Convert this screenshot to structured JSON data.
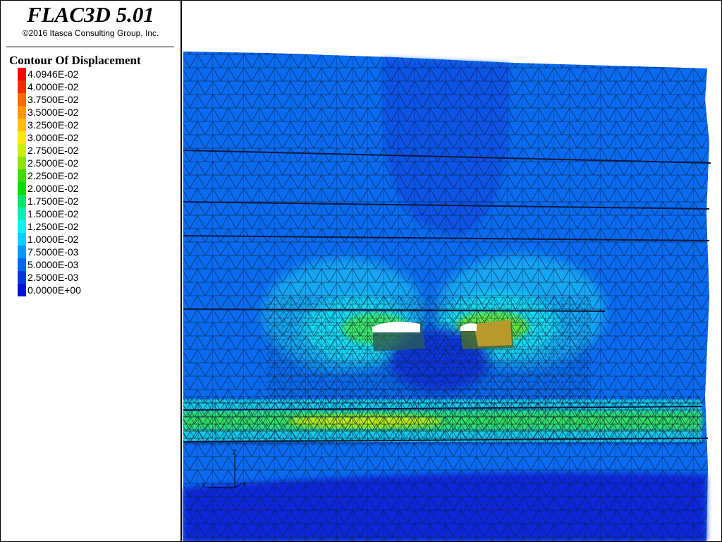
{
  "app": {
    "title": "FLAC3D 5.01",
    "copyright": "©2016 Itasca Consulting Group, Inc."
  },
  "legend": {
    "title": "Contour Of Displacement",
    "items": [
      {
        "label": "4.0946E-02",
        "color": "#ff0000"
      },
      {
        "label": "4.0000E-02",
        "color": "#ff2a00"
      },
      {
        "label": "3.7500E-02",
        "color": "#ff6a00"
      },
      {
        "label": "3.5000E-02",
        "color": "#ff9500"
      },
      {
        "label": "3.2500E-02",
        "color": "#ffbf00"
      },
      {
        "label": "3.0000E-02",
        "color": "#ffea00"
      },
      {
        "label": "2.7500E-02",
        "color": "#c8f000"
      },
      {
        "label": "2.5000E-02",
        "color": "#8ce600"
      },
      {
        "label": "2.2500E-02",
        "color": "#40dd00"
      },
      {
        "label": "2.0000E-02",
        "color": "#00e000"
      },
      {
        "label": "1.7500E-02",
        "color": "#00e86a"
      },
      {
        "label": "1.5000E-02",
        "color": "#00f0b4"
      },
      {
        "label": "1.2500E-02",
        "color": "#00f6ee"
      },
      {
        "label": "1.0000E-02",
        "color": "#00d2ff"
      },
      {
        "label": "7.5000E-03",
        "color": "#009aff"
      },
      {
        "label": "5.0000E-03",
        "color": "#0068f0"
      },
      {
        "label": "2.5000E-03",
        "color": "#0038e0"
      },
      {
        "label": "0.0000E+00",
        "color": "#0010d8"
      }
    ]
  },
  "axes": {
    "x_label": "X",
    "y_label": "Y",
    "z_label": "Z"
  }
}
